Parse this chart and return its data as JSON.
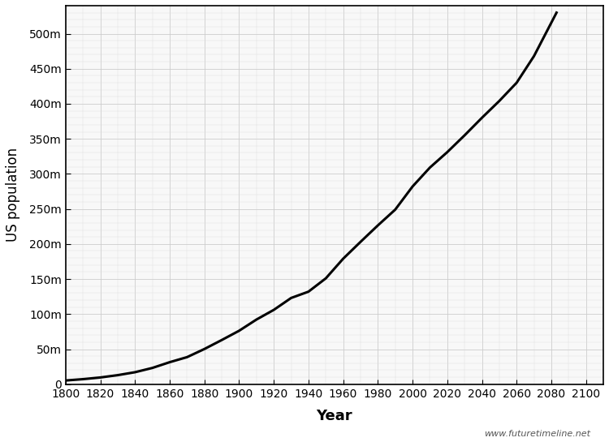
{
  "title": "",
  "xlabel": "Year",
  "ylabel": "US population",
  "website": "www.futuretimeline.net",
  "background_color": "#f8f8f8",
  "line_color": "#000000",
  "line_width": 2.2,
  "xlim": [
    1800,
    2110
  ],
  "ylim": [
    0,
    540000000
  ],
  "xticks": [
    1800,
    1820,
    1840,
    1860,
    1880,
    1900,
    1920,
    1940,
    1960,
    1980,
    2000,
    2020,
    2040,
    2060,
    2080,
    2100
  ],
  "yticks": [
    0,
    50000000,
    100000000,
    150000000,
    200000000,
    250000000,
    300000000,
    350000000,
    400000000,
    450000000,
    500000000
  ],
  "ytick_labels": [
    "0",
    "50m",
    "100m",
    "150m",
    "200m",
    "250m",
    "300m",
    "350m",
    "400m",
    "450m",
    "500m"
  ],
  "data": {
    "years": [
      1800,
      1810,
      1820,
      1830,
      1840,
      1850,
      1860,
      1870,
      1880,
      1890,
      1900,
      1910,
      1920,
      1930,
      1940,
      1950,
      1960,
      1970,
      1980,
      1990,
      2000,
      2010,
      2020,
      2030,
      2040,
      2050,
      2060,
      2070,
      2083
    ],
    "population": [
      5300000,
      7200000,
      9600000,
      12900000,
      17100000,
      23200000,
      31400000,
      38600000,
      50200000,
      63000000,
      76200000,
      92200000,
      106000000,
      123000000,
      132000000,
      151000000,
      179000000,
      203000000,
      226500000,
      249000000,
      282000000,
      309000000,
      331000000,
      355000000,
      380000000,
      404000000,
      430000000,
      468000000,
      530000000
    ]
  }
}
